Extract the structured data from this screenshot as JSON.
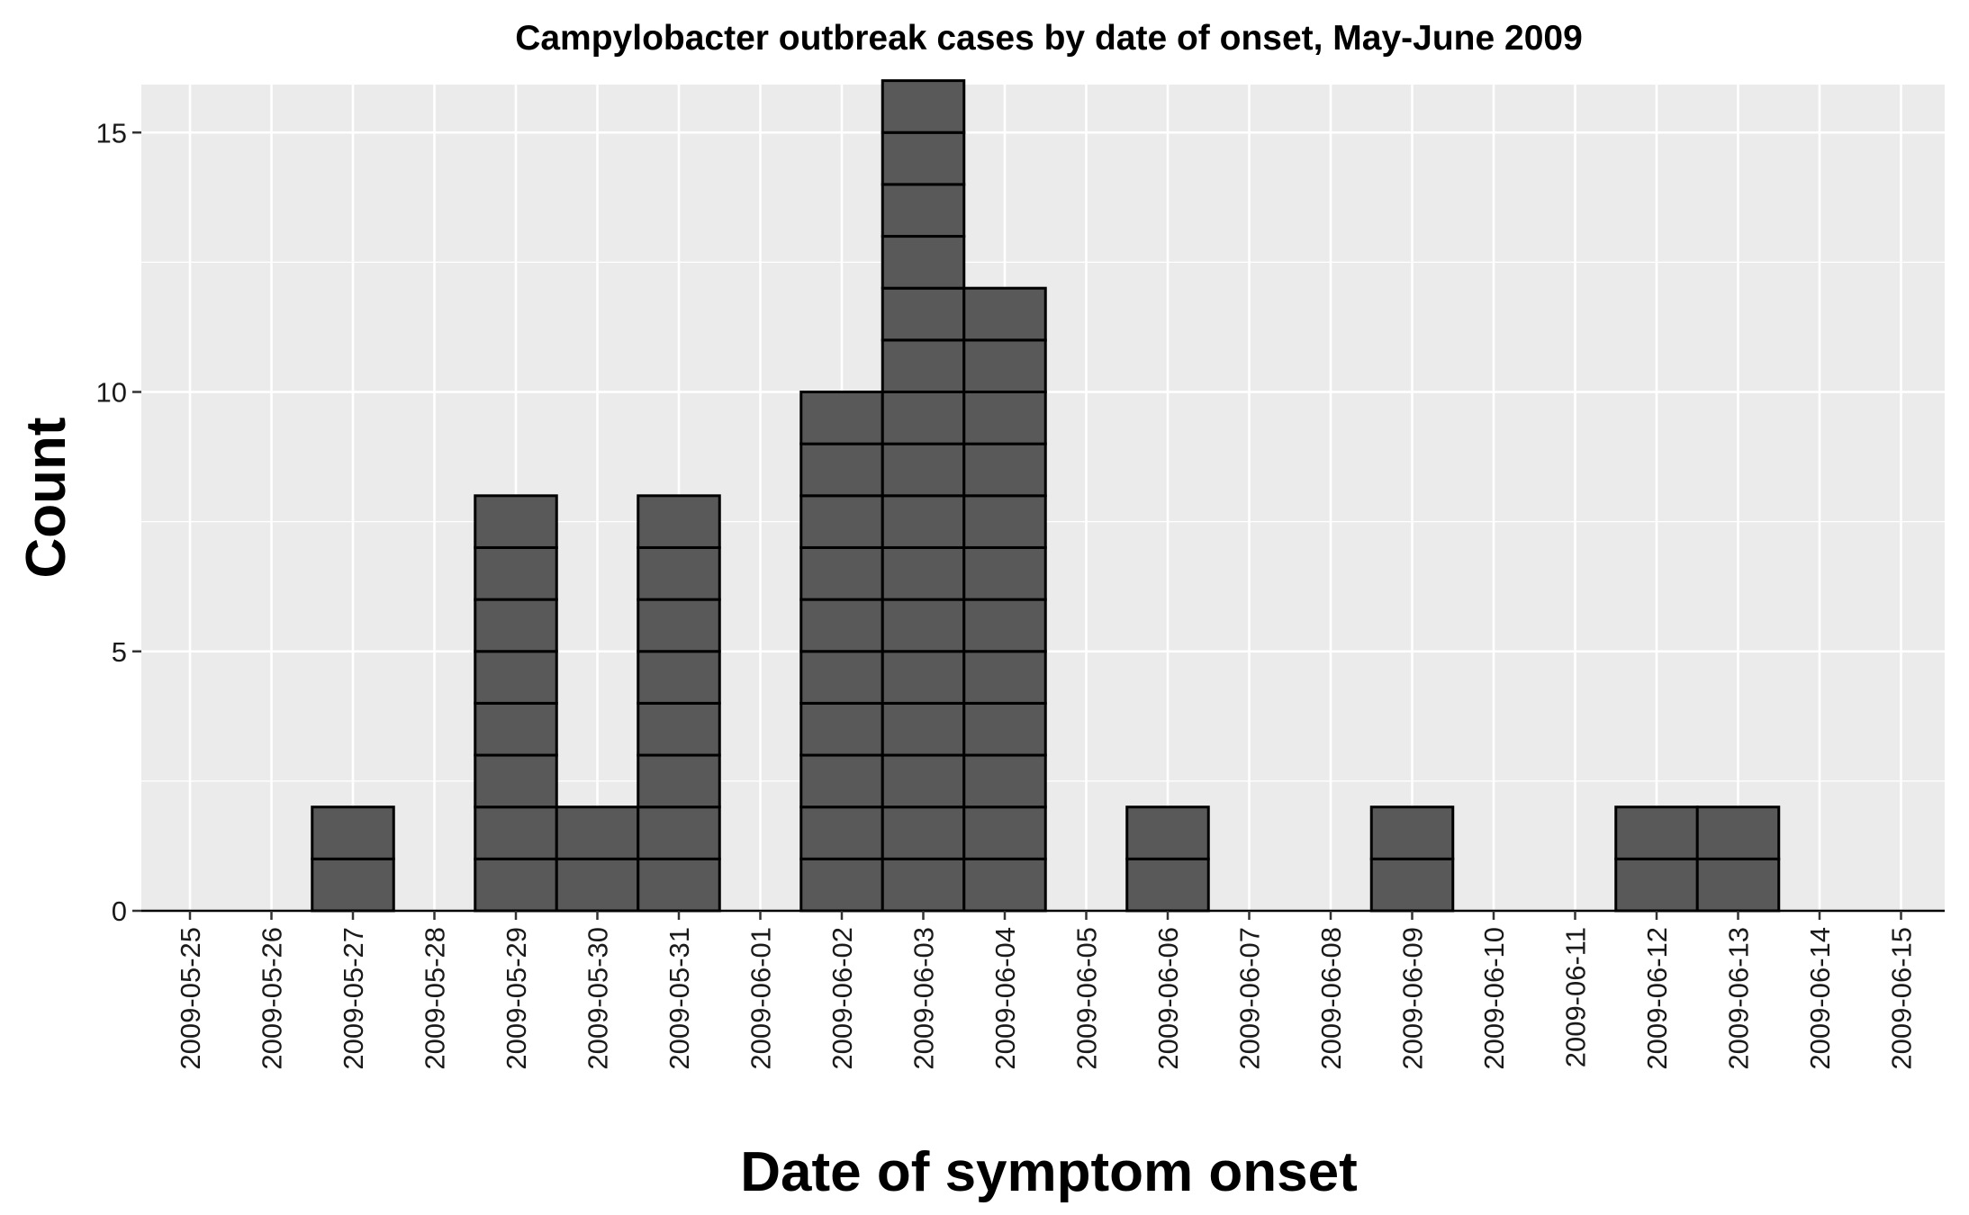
{
  "chart_data": {
    "type": "bar",
    "title": "Campylobacter outbreak cases by date of onset, May-June 2009",
    "xlabel": "Date of symptom onset",
    "ylabel": "Count",
    "categories": [
      "2009-05-25",
      "2009-05-26",
      "2009-05-27",
      "2009-05-28",
      "2009-05-29",
      "2009-05-30",
      "2009-05-31",
      "2009-06-01",
      "2009-06-02",
      "2009-06-03",
      "2009-06-04",
      "2009-06-05",
      "2009-06-06",
      "2009-06-07",
      "2009-06-08",
      "2009-06-09",
      "2009-06-10",
      "2009-06-11",
      "2009-06-12",
      "2009-06-13",
      "2009-06-14",
      "2009-06-15"
    ],
    "values": [
      0,
      0,
      2,
      0,
      8,
      2,
      8,
      0,
      10,
      16,
      12,
      0,
      2,
      0,
      0,
      2,
      0,
      0,
      2,
      2,
      0,
      0
    ],
    "ylim": [
      0,
      16
    ],
    "yticks": [
      0,
      5,
      10,
      15
    ],
    "stacked_unit_cells": true,
    "grid": true,
    "legend": "none",
    "colors": {
      "panel": "#ebebeb",
      "grid": "#ffffff",
      "bar_fill": "#595959",
      "bar_outline": "#000000"
    }
  }
}
